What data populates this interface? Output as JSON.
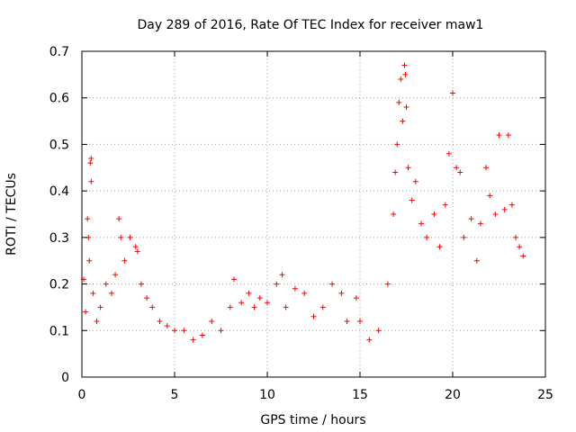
{
  "chart_data": {
    "type": "scatter",
    "title": "Day 289 of 2016, Rate Of TEC Index for receiver maw1",
    "xlabel": "GPS time / hours",
    "ylabel": "ROTI / TECUs",
    "xlim": [
      0,
      25
    ],
    "ylim": [
      0,
      0.7
    ],
    "xticks": [
      0,
      5,
      10,
      15,
      20,
      25
    ],
    "yticks": [
      0,
      0.1,
      0.2,
      0.3,
      0.4,
      0.5,
      0.6,
      0.7
    ],
    "xtick_labels": [
      "0",
      "5",
      "10",
      "15",
      "20",
      "25"
    ],
    "ytick_labels": [
      "0",
      "0.1",
      "0.2",
      "0.3",
      "0.4",
      "0.5",
      "0.6",
      "0.7"
    ],
    "grid": true,
    "marker": "+",
    "color": "#ff0000",
    "series": [
      {
        "name": "ROTI",
        "points": [
          [
            0.1,
            0.21
          ],
          [
            0.2,
            0.14
          ],
          [
            0.3,
            0.34
          ],
          [
            0.35,
            0.3
          ],
          [
            0.4,
            0.25
          ],
          [
            0.45,
            0.46
          ],
          [
            0.5,
            0.47
          ],
          [
            0.5,
            0.42
          ],
          [
            0.6,
            0.18
          ],
          [
            0.8,
            0.12
          ],
          [
            1.0,
            0.15
          ],
          [
            1.3,
            0.2
          ],
          [
            1.6,
            0.18
          ],
          [
            1.8,
            0.22
          ],
          [
            2.0,
            0.34
          ],
          [
            2.1,
            0.3
          ],
          [
            2.3,
            0.25
          ],
          [
            2.6,
            0.3
          ],
          [
            2.9,
            0.28
          ],
          [
            3.0,
            0.27
          ],
          [
            3.2,
            0.2
          ],
          [
            3.5,
            0.17
          ],
          [
            3.8,
            0.15
          ],
          [
            4.2,
            0.12
          ],
          [
            4.6,
            0.11
          ],
          [
            5.0,
            0.1
          ],
          [
            5.5,
            0.1
          ],
          [
            6.0,
            0.08
          ],
          [
            6.5,
            0.09
          ],
          [
            7.0,
            0.12
          ],
          [
            7.5,
            0.1
          ],
          [
            8.0,
            0.15
          ],
          [
            8.2,
            0.21
          ],
          [
            8.6,
            0.16
          ],
          [
            9.0,
            0.18
          ],
          [
            9.3,
            0.15
          ],
          [
            9.6,
            0.17
          ],
          [
            10.0,
            0.16
          ],
          [
            10.5,
            0.2
          ],
          [
            10.8,
            0.22
          ],
          [
            11.0,
            0.15
          ],
          [
            11.5,
            0.19
          ],
          [
            12.0,
            0.18
          ],
          [
            12.5,
            0.13
          ],
          [
            13.0,
            0.15
          ],
          [
            13.5,
            0.2
          ],
          [
            14.0,
            0.18
          ],
          [
            14.3,
            0.12
          ],
          [
            14.8,
            0.17
          ],
          [
            15.0,
            0.12
          ],
          [
            15.5,
            0.08
          ],
          [
            16.0,
            0.1
          ],
          [
            16.5,
            0.2
          ],
          [
            16.8,
            0.35
          ],
          [
            16.9,
            0.44
          ],
          [
            17.0,
            0.5
          ],
          [
            17.1,
            0.59
          ],
          [
            17.2,
            0.64
          ],
          [
            17.3,
            0.55
          ],
          [
            17.4,
            0.67
          ],
          [
            17.45,
            0.65
          ],
          [
            17.5,
            0.58
          ],
          [
            17.6,
            0.45
          ],
          [
            17.8,
            0.38
          ],
          [
            18.0,
            0.42
          ],
          [
            18.3,
            0.33
          ],
          [
            18.6,
            0.3
          ],
          [
            19.0,
            0.35
          ],
          [
            19.3,
            0.28
          ],
          [
            19.6,
            0.37
          ],
          [
            19.8,
            0.48
          ],
          [
            20.0,
            0.61
          ],
          [
            20.2,
            0.45
          ],
          [
            20.4,
            0.44
          ],
          [
            20.6,
            0.3
          ],
          [
            21.0,
            0.34
          ],
          [
            21.3,
            0.25
          ],
          [
            21.5,
            0.33
          ],
          [
            21.8,
            0.45
          ],
          [
            22.0,
            0.39
          ],
          [
            22.3,
            0.35
          ],
          [
            22.5,
            0.52
          ],
          [
            22.8,
            0.36
          ],
          [
            23.0,
            0.52
          ],
          [
            23.2,
            0.37
          ],
          [
            23.4,
            0.3
          ],
          [
            23.6,
            0.28
          ],
          [
            23.8,
            0.26
          ]
        ]
      }
    ]
  }
}
